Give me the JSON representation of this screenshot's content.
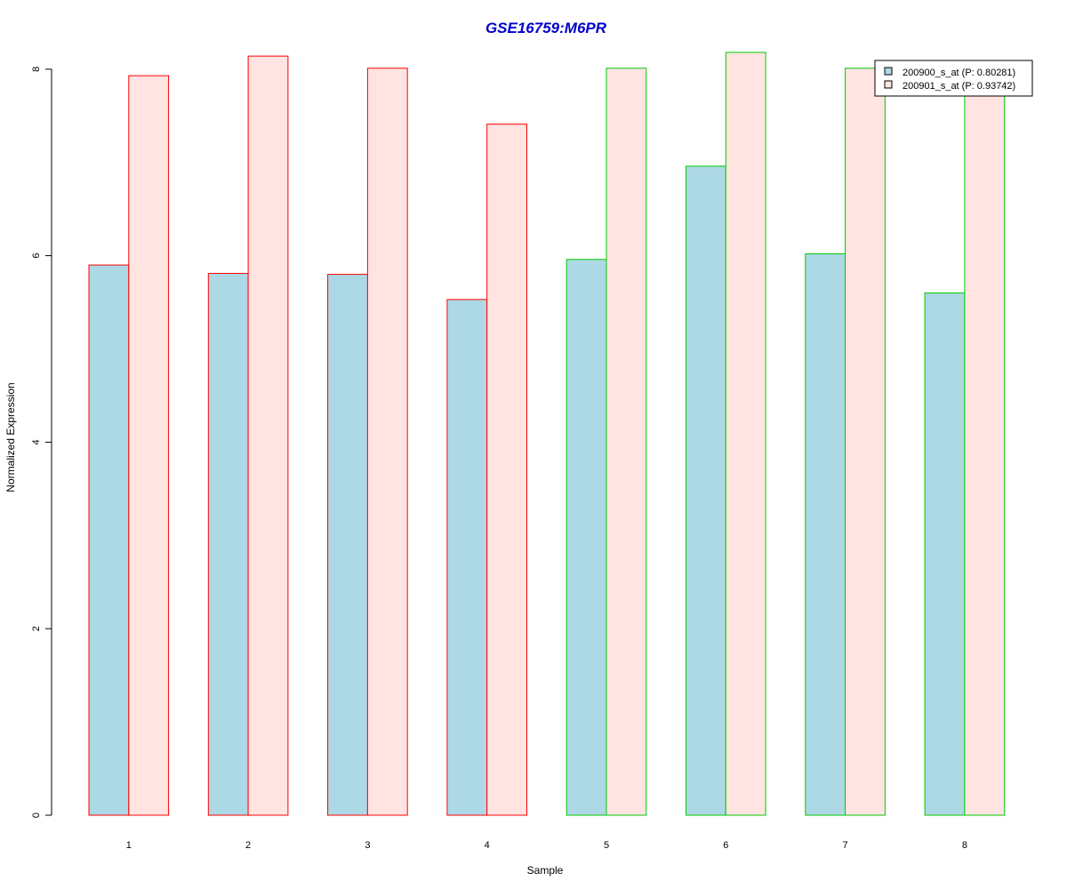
{
  "chart_data": {
    "type": "bar",
    "title": "GSE16759:M6PR",
    "xlabel": "Sample",
    "ylabel": "Normalized Expression",
    "categories": [
      "1",
      "2",
      "3",
      "4",
      "5",
      "6",
      "7",
      "8"
    ],
    "series": [
      {
        "name": "200900_s_at (P: 0.80281)",
        "values": [
          5.9,
          5.81,
          5.8,
          5.53,
          5.96,
          6.96,
          6.02,
          5.6
        ],
        "fill": "#add8e6"
      },
      {
        "name": "200901_s_at (P: 0.93742)",
        "values": [
          7.93,
          8.14,
          8.01,
          7.41,
          8.01,
          8.18,
          8.01,
          7.95
        ],
        "fill": "#ffe4e1"
      }
    ],
    "group_border_colors": [
      "#ff0000",
      "#ff0000",
      "#ff0000",
      "#ff0000",
      "#00cc00",
      "#00cc00",
      "#00cc00",
      "#00cc00"
    ],
    "yticks": [
      "0",
      "2",
      "4",
      "6",
      "8"
    ],
    "ylim": [
      0,
      8.3
    ],
    "grid": false,
    "legend_position": "top-right",
    "title_color": "#0000cc"
  }
}
